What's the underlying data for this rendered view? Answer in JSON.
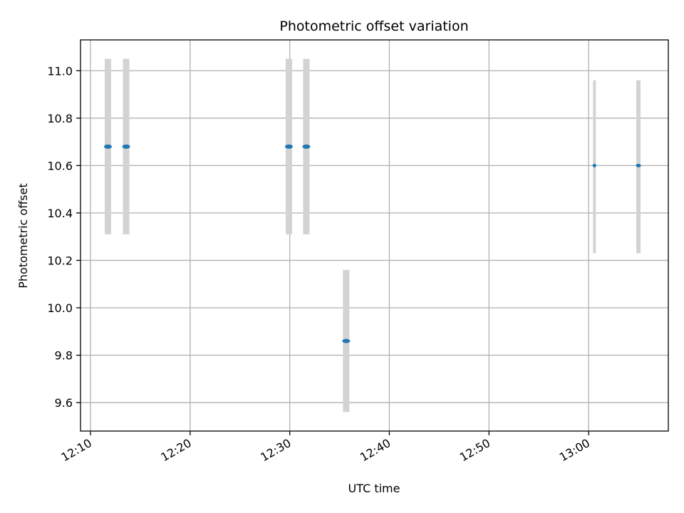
{
  "chart_data": {
    "type": "scatter",
    "title": "Photometric offset variation",
    "xlabel": "UTC time",
    "ylabel": "Photometric offset",
    "x_ticks": [
      "12:10",
      "12:20",
      "12:30",
      "12:40",
      "12:50",
      "13:00"
    ],
    "y_ticks": [
      "9.6",
      "9.8",
      "10.0",
      "10.2",
      "10.4",
      "10.6",
      "10.8",
      "11.0"
    ],
    "xlim": [
      "12:09",
      "13:08"
    ],
    "ylim": [
      9.48,
      11.13
    ],
    "grid": true,
    "legend": "none",
    "point_color": "#1f77b4",
    "errorbar_color": "#d3d3d3",
    "points": [
      {
        "x": "12:11:45",
        "y": 10.68,
        "err_low": 0.37,
        "err_high": 0.37
      },
      {
        "x": "12:13:35",
        "y": 10.68,
        "err_low": 0.37,
        "err_high": 0.37
      },
      {
        "x": "12:29:55",
        "y": 10.68,
        "err_low": 0.37,
        "err_high": 0.37
      },
      {
        "x": "12:31:40",
        "y": 10.68,
        "err_low": 0.37,
        "err_high": 0.37
      },
      {
        "x": "12:35:40",
        "y": 9.86,
        "err_low": 0.3,
        "err_high": 0.3
      },
      {
        "x": "13:00:35",
        "y": 10.6,
        "err_low": 0.37,
        "err_high": 0.36
      },
      {
        "x": "13:05:00",
        "y": 10.6,
        "err_low": 0.37,
        "err_high": 0.36
      }
    ]
  }
}
